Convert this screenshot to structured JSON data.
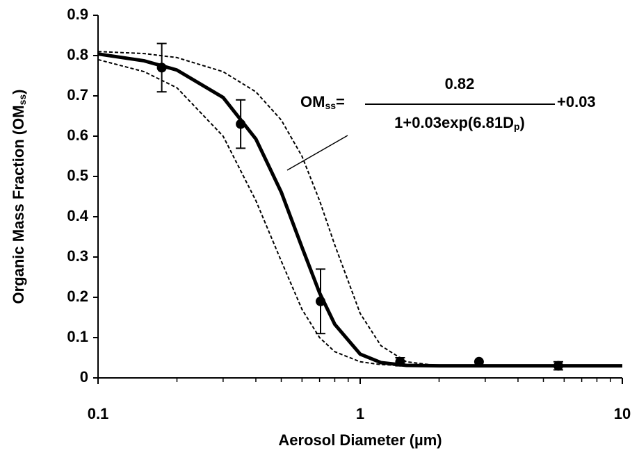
{
  "chart_data": {
    "type": "scatter",
    "xscale": "log",
    "xlim": [
      0.1,
      10
    ],
    "ylim": [
      0,
      0.9
    ],
    "xticks": [
      0.1,
      1,
      10
    ],
    "xminorticks": [
      0.2,
      0.3,
      0.4,
      0.5,
      0.6,
      0.7,
      0.8,
      0.9,
      2,
      3,
      4,
      5,
      6,
      7,
      8,
      9
    ],
    "yticks": [
      0,
      0.1,
      0.2,
      0.3,
      0.4,
      0.5,
      0.6,
      0.7,
      0.8,
      0.9
    ],
    "xlabel": "Aerosol Diameter (µm)",
    "ylabel": {
      "text": "Organic Mass Fraction (OM",
      "sub": "ss",
      "end": ")"
    },
    "annotation": {
      "lhs": "OM",
      "lhs_sub": "ss",
      "eq": "=",
      "numerator": "0.82",
      "denominator": "1+0.03exp(6.81D",
      "denominator_sub": "p",
      "denominator_end": ")",
      "tail": "+0.03"
    },
    "series": [
      {
        "type": "line",
        "color": "#000000",
        "dashed": false,
        "width": 5,
        "x": [
          0.1,
          0.15,
          0.2,
          0.3,
          0.4,
          0.5,
          0.6,
          0.7,
          0.8,
          1,
          1.2,
          1.5,
          2,
          3,
          5,
          10
        ],
        "values": [
          0.804,
          0.787,
          0.764,
          0.696,
          0.593,
          0.461,
          0.324,
          0.211,
          0.133,
          0.059,
          0.038,
          0.031,
          0.03,
          0.03,
          0.03,
          0.03
        ]
      },
      {
        "type": "line",
        "color": "#000000",
        "dashed": true,
        "width": 2,
        "x": [
          0.1,
          0.15,
          0.2,
          0.3,
          0.4,
          0.5,
          0.6,
          0.7,
          0.8,
          1,
          1.2,
          1.5,
          2,
          3,
          5,
          10
        ],
        "values": [
          0.79,
          0.76,
          0.72,
          0.6,
          0.44,
          0.29,
          0.17,
          0.1,
          0.065,
          0.04,
          0.033,
          0.03,
          0.03,
          0.03,
          0.03,
          0.03
        ]
      },
      {
        "type": "line",
        "color": "#000000",
        "dashed": true,
        "width": 2,
        "x": [
          0.1,
          0.15,
          0.2,
          0.3,
          0.4,
          0.5,
          0.6,
          0.7,
          0.8,
          1,
          1.2,
          1.5,
          2,
          3,
          5,
          10
        ],
        "values": [
          0.81,
          0.805,
          0.795,
          0.76,
          0.71,
          0.64,
          0.55,
          0.44,
          0.33,
          0.16,
          0.08,
          0.04,
          0.03,
          0.03,
          0.03,
          0.03
        ]
      },
      {
        "type": "scatter",
        "color": "#000000",
        "x": [
          0.175,
          0.35,
          0.706,
          1.42,
          2.84,
          5.7
        ],
        "values": [
          0.77,
          0.63,
          0.19,
          0.04,
          0.04,
          0.03
        ],
        "errors": [
          0.06,
          0.06,
          0.08,
          0.01,
          0,
          0.01
        ]
      }
    ]
  }
}
